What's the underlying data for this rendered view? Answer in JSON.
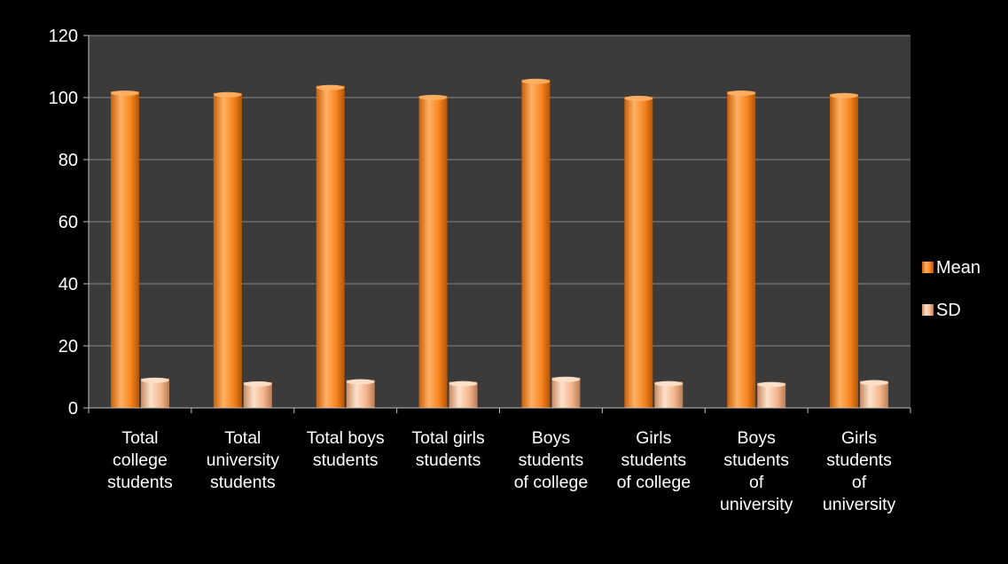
{
  "chart_data": {
    "type": "bar",
    "categories": [
      [
        "Total",
        "college",
        "students"
      ],
      [
        "Total",
        "university",
        "students"
      ],
      [
        "Total boys",
        "students"
      ],
      [
        "Total girls",
        "students"
      ],
      [
        "Boys",
        "students",
        "of college"
      ],
      [
        "Girls",
        "students",
        "of college"
      ],
      [
        "Boys",
        "students",
        "of",
        "university"
      ],
      [
        "Girls",
        "students",
        "of",
        "university"
      ]
    ],
    "series": [
      {
        "name": "Mean",
        "values": [
          102,
          101.5,
          103.8,
          100.6,
          105.8,
          100.3,
          102,
          101.2
        ]
      },
      {
        "name": "SD",
        "values": [
          9.5,
          8.3,
          9,
          8.4,
          9.8,
          8.4,
          8.1,
          8.7
        ]
      }
    ],
    "ylim": [
      0,
      120
    ],
    "yticks": [
      0,
      20,
      40,
      60,
      80,
      100,
      120
    ],
    "grid": true,
    "legend_position": "right",
    "colors": {
      "background": "#000000",
      "plot_area": "#3b3b3b",
      "gridline": "#8a8a8a",
      "mean_light": "#ffb165",
      "mean_mid": "#f7861f",
      "mean_dark": "#c75f08",
      "sd_light": "#fde2cb",
      "sd_mid": "#f4b68d",
      "sd_dark": "#c98a60"
    }
  }
}
